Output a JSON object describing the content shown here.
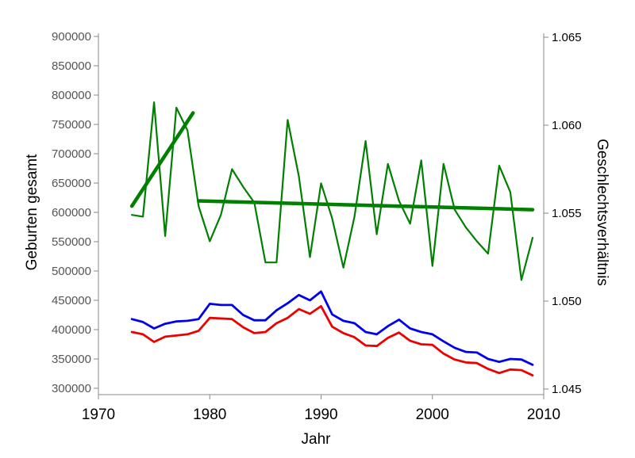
{
  "chart_data": {
    "type": "line",
    "xlabel": "Jahr",
    "ylabel_left": "Geburten gesamt",
    "ylabel_right": "Geschlechtsverhältnis",
    "x_ticks": [
      1970,
      1980,
      1990,
      2000,
      2010
    ],
    "y_left_ticks": [
      300000,
      350000,
      400000,
      450000,
      500000,
      550000,
      600000,
      650000,
      700000,
      750000,
      800000,
      850000,
      900000
    ],
    "y_right_ticks": [
      "1.045",
      "1.050",
      "1.055",
      "1.060",
      "1.065"
    ],
    "xlim": [
      1970,
      2010
    ],
    "ylim_left": [
      290000,
      910000
    ],
    "ylim_right": [
      1.0445,
      1.0652
    ],
    "series": [
      {
        "axis": "left",
        "color": "#0000ee",
        "x": [
          1973,
          1974,
          1975,
          1976,
          1977,
          1978,
          1979,
          1980,
          1981,
          1982,
          1983,
          1984,
          1985,
          1986,
          1987,
          1988,
          1989,
          1990,
          1991,
          1992,
          1993,
          1994,
          1995,
          1996,
          1997,
          1998,
          1999,
          2000,
          2001,
          2002,
          2003,
          2004,
          2005,
          2006,
          2007,
          2008,
          2009
        ],
        "values": [
          418000,
          413000,
          402000,
          410000,
          414000,
          415000,
          418000,
          444000,
          442000,
          442000,
          425000,
          416000,
          416000,
          433000,
          445000,
          459000,
          450000,
          465000,
          426000,
          415000,
          411000,
          396000,
          392000,
          406000,
          417000,
          402000,
          396000,
          392000,
          380000,
          369000,
          362000,
          361000,
          350000,
          345000,
          350000,
          349000,
          340000
        ]
      },
      {
        "axis": "left",
        "color": "#ee0000",
        "x": [
          1973,
          1974,
          1975,
          1976,
          1977,
          1978,
          1979,
          1980,
          1981,
          1982,
          1983,
          1984,
          1985,
          1986,
          1987,
          1988,
          1989,
          1990,
          1991,
          1992,
          1993,
          1994,
          1995,
          1996,
          1997,
          1998,
          1999,
          2000,
          2001,
          2002,
          2003,
          2004,
          2005,
          2006,
          2007,
          2008,
          2009
        ],
        "values": [
          396000,
          392000,
          379000,
          388000,
          390000,
          392000,
          398000,
          420000,
          419000,
          418000,
          404000,
          394000,
          396000,
          411000,
          420000,
          435000,
          427000,
          440000,
          405000,
          394000,
          387000,
          373000,
          372000,
          386000,
          395000,
          381000,
          375000,
          374000,
          359000,
          349000,
          344000,
          343000,
          333000,
          326000,
          332000,
          331000,
          322000
        ]
      },
      {
        "axis": "right",
        "color": "#008000",
        "x": [
          1973,
          1974,
          1975,
          1976,
          1977,
          1978,
          1979,
          1980,
          1981,
          1982,
          1983,
          1984,
          1985,
          1986,
          1987,
          1988,
          1989,
          1990,
          1991,
          1992,
          1993,
          1994,
          1995,
          1996,
          1997,
          1998,
          1999,
          2000,
          2001,
          2002,
          2003,
          2004,
          2005,
          2006,
          2007,
          2008,
          2009
        ],
        "values": [
          1.0549,
          1.0548,
          1.0613,
          1.0537,
          1.061,
          1.0597,
          1.0554,
          1.0534,
          1.0549,
          1.0575,
          1.0565,
          1.0556,
          1.0522,
          1.0522,
          1.0603,
          1.0571,
          1.0525,
          1.0567,
          1.0547,
          1.0519,
          1.0548,
          1.0591,
          1.0538,
          1.0578,
          1.0557,
          1.0544,
          1.058,
          1.052,
          1.0578,
          1.0552,
          1.0542,
          1.0534,
          1.0527,
          1.0577,
          1.0562,
          1.0512,
          1.0536
        ]
      }
    ],
    "trend_lines": [
      {
        "axis": "right",
        "color": "#008000",
        "x": [
          1973,
          1978.5
        ],
        "values": [
          1.0554,
          1.0607
        ]
      },
      {
        "axis": "right",
        "color": "#008000",
        "x": [
          1979,
          2009
        ],
        "values": [
          1.0557,
          1.0552
        ]
      }
    ],
    "grid": false,
    "legend": "none"
  }
}
